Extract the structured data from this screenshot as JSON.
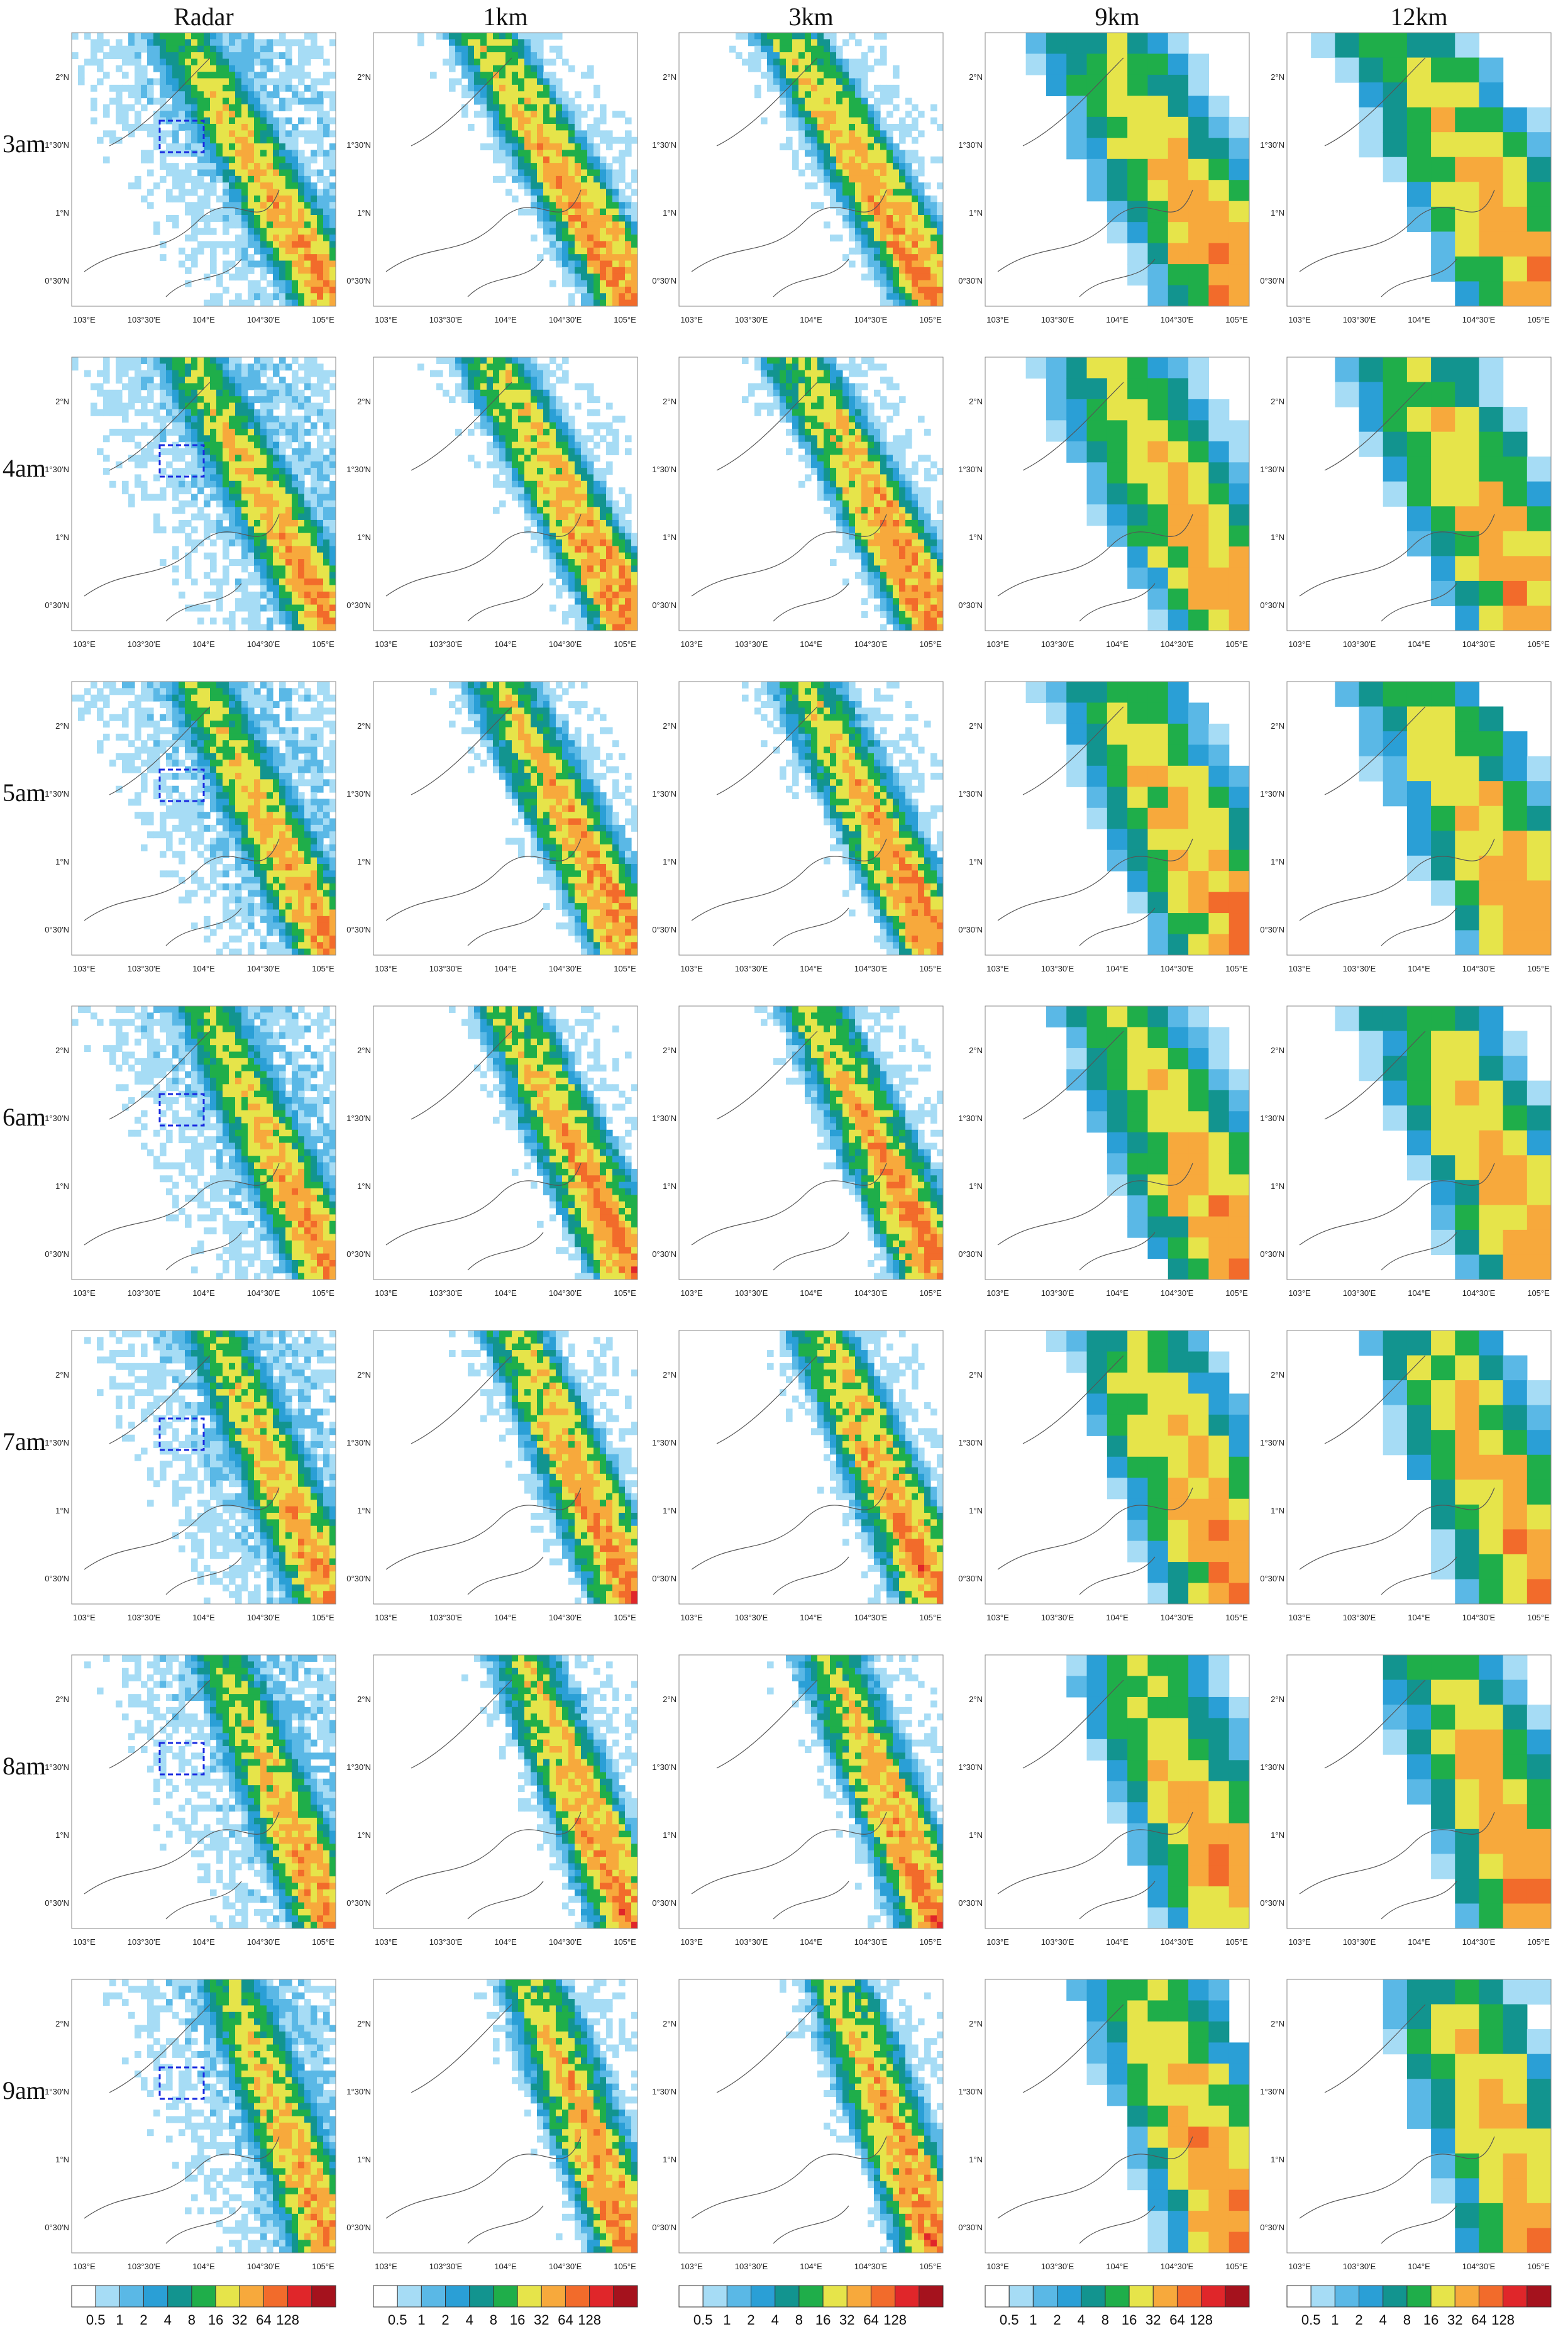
{
  "columns": [
    "Radar",
    "1km",
    "3km",
    "9km",
    "12km"
  ],
  "rows": [
    "3am",
    "4am",
    "5am",
    "6am",
    "7am",
    "8am",
    "9am"
  ],
  "lat_ticks": [
    "2°N",
    "1°30'N",
    "1°N",
    "0°30'N"
  ],
  "lon_ticks": [
    "103°E",
    "103°30'E",
    "104°E",
    "104°30'E",
    "105°E"
  ],
  "colorbar": {
    "levels": [
      0.5,
      1,
      2,
      4,
      8,
      16,
      32,
      64,
      128
    ],
    "colors": [
      "#ffffff",
      "#a6dcf5",
      "#5ab8e6",
      "#2a9fd6",
      "#12948f",
      "#1fae4a",
      "#e6e44a",
      "#f7a93c",
      "#f26b2b",
      "#e0262a",
      "#a5121d"
    ]
  }
}
